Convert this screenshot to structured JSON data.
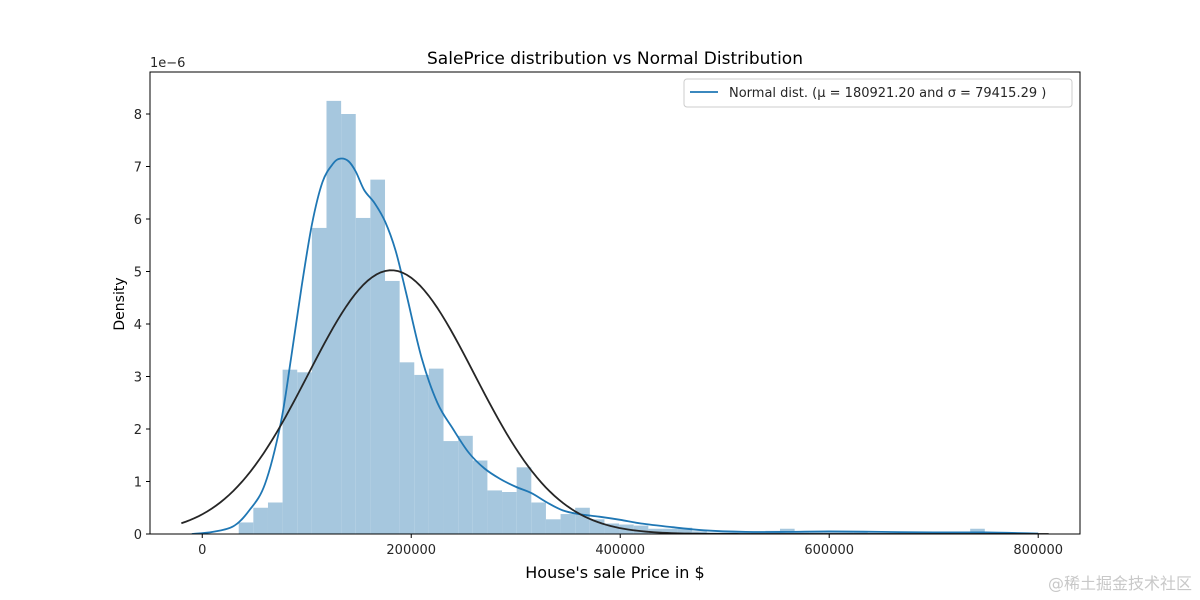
{
  "chart_data": {
    "type": "bar",
    "title": "SalePrice distribution vs Normal Distribution",
    "xlabel": "House's sale Price in $",
    "ylabel": "Density",
    "y_offset_text": "1e−6",
    "xlim": [
      -50000,
      840000
    ],
    "ylim": [
      0,
      8.8
    ],
    "x_ticks": [
      0,
      200000,
      400000,
      600000,
      800000
    ],
    "y_ticks": [
      0,
      1,
      2,
      3,
      4,
      5,
      6,
      7,
      8
    ],
    "bin_width": 14000,
    "histogram": {
      "bin_starts": [
        34900,
        48900,
        62900,
        76900,
        90900,
        104900,
        118900,
        132900,
        146900,
        160900,
        174900,
        188900,
        202900,
        216900,
        230900,
        244900,
        258900,
        272900,
        286900,
        300900,
        314900,
        328900,
        342900,
        356900,
        370900,
        384900,
        398900,
        412900,
        426900,
        440900,
        454900,
        468900,
        482900,
        496900,
        510900,
        524900,
        538900,
        552900,
        566900,
        580900,
        594900,
        608900,
        622900,
        636900,
        650900,
        664900,
        678900,
        692900,
        706900,
        720900,
        734900
      ],
      "densities": [
        0.22,
        0.5,
        0.6,
        3.13,
        3.08,
        5.83,
        8.25,
        8.0,
        6.02,
        6.75,
        4.82,
        3.27,
        3.03,
        3.15,
        1.77,
        1.87,
        1.4,
        0.83,
        0.8,
        1.27,
        0.6,
        0.28,
        0.38,
        0.5,
        0.28,
        0.2,
        0.18,
        0.16,
        0.1,
        0.1,
        0.12,
        0.05,
        0.03,
        0.03,
        0.03,
        0.03,
        0.06,
        0.1,
        0.04,
        0.05,
        0.05,
        0.05,
        0.03,
        0.02,
        0.02,
        0.02,
        0.02,
        0.02,
        0.03,
        0.03,
        0.1
      ]
    },
    "kde": {
      "x": [
        -10000,
        10000,
        30000,
        45000,
        60000,
        75000,
        85000,
        95000,
        105000,
        115000,
        125000,
        132000,
        140000,
        147000,
        155000,
        165000,
        175000,
        185000,
        195000,
        210000,
        225000,
        240000,
        255000,
        270000,
        285000,
        300000,
        315000,
        330000,
        345000,
        360000,
        380000,
        400000,
        420000,
        450000,
        480000,
        520000,
        560000,
        600000,
        650000,
        700000,
        750000,
        800000
      ],
      "y": [
        0.0,
        0.04,
        0.15,
        0.45,
        0.95,
        2.1,
        3.35,
        4.7,
        5.9,
        6.7,
        7.05,
        7.15,
        7.1,
        6.9,
        6.55,
        6.3,
        5.95,
        5.4,
        4.6,
        3.35,
        2.5,
        2.0,
        1.55,
        1.25,
        1.05,
        0.9,
        0.78,
        0.6,
        0.45,
        0.38,
        0.33,
        0.27,
        0.2,
        0.13,
        0.07,
        0.04,
        0.04,
        0.05,
        0.04,
        0.03,
        0.03,
        0.01
      ]
    },
    "normal_fit": {
      "mu": 180921.2,
      "sigma": 79415.29,
      "x_range": [
        -20000,
        810000
      ],
      "color": "#262626"
    },
    "colors": {
      "bars": "#a6c7de",
      "kde": "#1f77b4"
    },
    "legend": {
      "label": "Normal dist. (μ =  180921.20 and σ =  79415.29 )",
      "placement": "top-right"
    },
    "grid": false
  },
  "watermark": "@稀土掘金技术社区"
}
